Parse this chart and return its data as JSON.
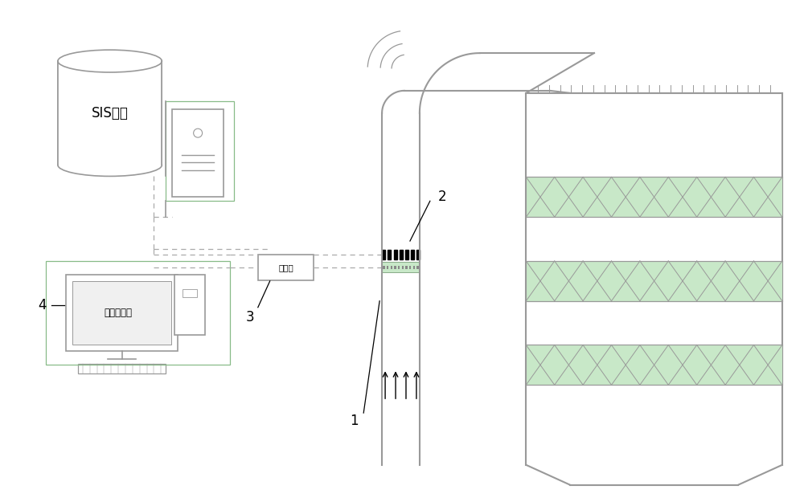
{
  "bg_color": "#ffffff",
  "lc": "#aaaaaa",
  "lc2": "#999999",
  "green_fill": "#c8e8c8",
  "green_edge": "#88aa88",
  "dashed_color": "#aaaaaa",
  "black": "#000000",
  "label_1": "1",
  "label_2": "2",
  "label_3": "3",
  "label_4": "4",
  "text_sis": "SIS系统",
  "text_bigdata": "大数据平台",
  "text_controller": "控制器"
}
